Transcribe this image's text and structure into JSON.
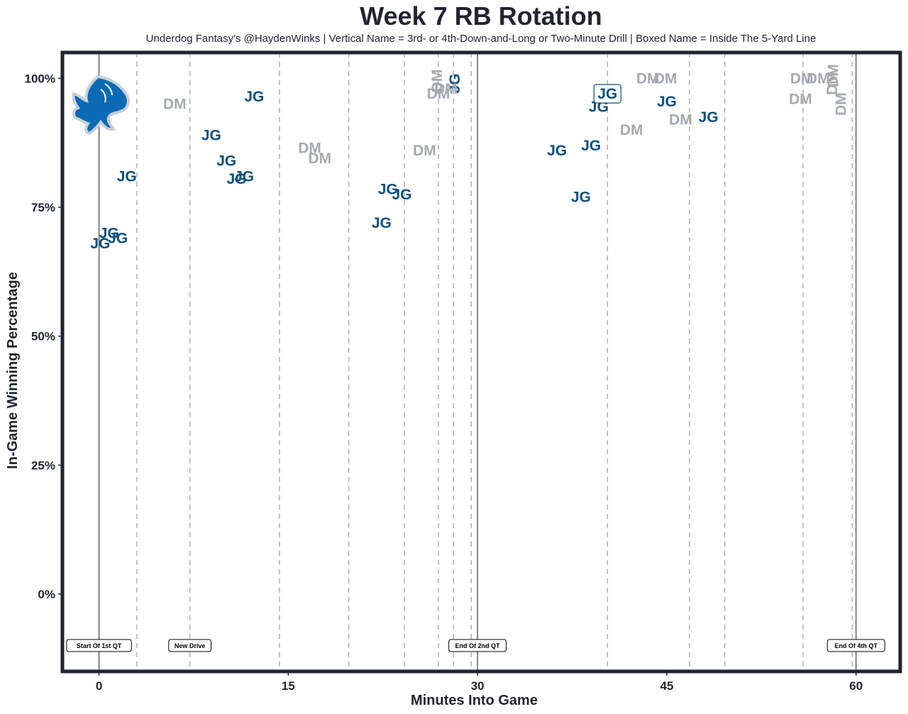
{
  "chart_data": {
    "type": "scatter",
    "title": "Week 7 RB Rotation",
    "subtitle": "Underdog Fantasy's @HaydenWinks | Vertical Name = 3rd- or 4th-Down-and-Long or Two-Minute Drill | Boxed Name = Inside The 5-Yard Line",
    "xlabel": "Minutes Into Game",
    "ylabel": "In-Game Winning Percentage",
    "xlim": [
      -2.9,
      63.5
    ],
    "ylim": [
      -15,
      105
    ],
    "x_ticks": [
      0,
      15,
      30,
      45,
      60
    ],
    "x_tick_labels": [
      "0",
      "15",
      "30",
      "45",
      "60"
    ],
    "y_ticks": [
      0,
      25,
      50,
      75,
      100
    ],
    "y_tick_labels": [
      "0%",
      "25%",
      "50%",
      "75%",
      "100%"
    ],
    "grid": false,
    "colors": {
      "JG": "#0b4f82",
      "DM": "#a5aab0",
      "frame": "#1f2430",
      "logo": "#0b6ab5"
    },
    "team_logo_icon": "detroit-lions-logo",
    "quarter_lines": [
      0,
      30,
      60
    ],
    "drive_lines": [
      3.0,
      7.2,
      14.3,
      19.8,
      24.2,
      26.9,
      28.1,
      29.5,
      40.3,
      46.8,
      49.6,
      55.8,
      59.7
    ],
    "markers": [
      {
        "x": 0,
        "label": "Start Of 1st QT"
      },
      {
        "x": 7.2,
        "label": "New Drive"
      },
      {
        "x": 30,
        "label": "End Of 2nd QT"
      },
      {
        "x": 60,
        "label": "End Of 4th QT"
      }
    ],
    "series": [
      {
        "name": "JG",
        "points": [
          {
            "x": 0.1,
            "y": 68,
            "label": "JG",
            "style": "normal"
          },
          {
            "x": 0.8,
            "y": 70,
            "label": "JG",
            "style": "normal"
          },
          {
            "x": 1.5,
            "y": 69,
            "label": "JG",
            "style": "normal"
          },
          {
            "x": 2.2,
            "y": 81,
            "label": "JG",
            "style": "normal"
          },
          {
            "x": 8.9,
            "y": 89,
            "label": "JG",
            "style": "normal"
          },
          {
            "x": 10.1,
            "y": 84,
            "label": "JG",
            "style": "normal"
          },
          {
            "x": 10.9,
            "y": 80.5,
            "label": "JG",
            "style": "normal"
          },
          {
            "x": 11.5,
            "y": 81,
            "label": "JG",
            "style": "normal"
          },
          {
            "x": 12.3,
            "y": 96.5,
            "label": "JG",
            "style": "normal"
          },
          {
            "x": 22.4,
            "y": 72,
            "label": "JG",
            "style": "normal"
          },
          {
            "x": 22.9,
            "y": 78.5,
            "label": "JG",
            "style": "normal"
          },
          {
            "x": 24.0,
            "y": 77.5,
            "label": "JG",
            "style": "normal"
          },
          {
            "x": 28.2,
            "y": 99,
            "label": "JG",
            "style": "vertical"
          },
          {
            "x": 36.3,
            "y": 86,
            "label": "JG",
            "style": "normal"
          },
          {
            "x": 38.2,
            "y": 77,
            "label": "JG",
            "style": "normal"
          },
          {
            "x": 39.0,
            "y": 87,
            "label": "JG",
            "style": "normal"
          },
          {
            "x": 39.6,
            "y": 94.5,
            "label": "JG",
            "style": "normal"
          },
          {
            "x": 40.3,
            "y": 97,
            "label": "JG",
            "style": "boxed"
          },
          {
            "x": 45.0,
            "y": 95.5,
            "label": "JG",
            "style": "normal"
          },
          {
            "x": 48.3,
            "y": 92.5,
            "label": "JG",
            "style": "normal"
          }
        ]
      },
      {
        "name": "DM",
        "points": [
          {
            "x": 6.0,
            "y": 95,
            "label": "DM",
            "style": "normal"
          },
          {
            "x": 16.7,
            "y": 86.5,
            "label": "DM",
            "style": "normal"
          },
          {
            "x": 17.5,
            "y": 84.5,
            "label": "DM",
            "style": "normal"
          },
          {
            "x": 25.8,
            "y": 86,
            "label": "DM",
            "style": "normal"
          },
          {
            "x": 26.9,
            "y": 97,
            "label": "DM",
            "style": "normal"
          },
          {
            "x": 27.5,
            "y": 98,
            "label": "DM",
            "style": "normal"
          },
          {
            "x": 26.8,
            "y": 99.5,
            "label": "DM",
            "style": "vertical"
          },
          {
            "x": 42.2,
            "y": 90,
            "label": "DM",
            "style": "normal"
          },
          {
            "x": 43.5,
            "y": 100,
            "label": "DM",
            "style": "normal"
          },
          {
            "x": 44.9,
            "y": 100,
            "label": "DM",
            "style": "normal"
          },
          {
            "x": 46.1,
            "y": 92,
            "label": "DM",
            "style": "normal"
          },
          {
            "x": 55.6,
            "y": 96,
            "label": "DM",
            "style": "normal"
          },
          {
            "x": 55.7,
            "y": 100,
            "label": "DM",
            "style": "normal"
          },
          {
            "x": 57.0,
            "y": 100,
            "label": "DM",
            "style": "normal"
          },
          {
            "x": 58.1,
            "y": 99,
            "label": "DM",
            "style": "vertical"
          },
          {
            "x": 58.2,
            "y": 100.5,
            "label": "DM",
            "style": "vertical"
          },
          {
            "x": 58.8,
            "y": 95,
            "label": "DM",
            "style": "vertical"
          }
        ]
      }
    ]
  }
}
